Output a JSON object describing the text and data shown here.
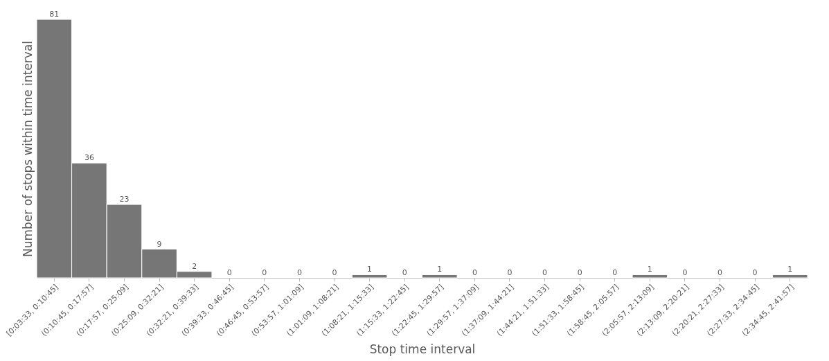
{
  "chart_data": {
    "type": "bar",
    "xlabel": "Stop time interval",
    "ylabel": "Number of stops within time interval",
    "categories": [
      "[0:03:33, 0:10:45]",
      "(0:10:45, 0:17:57]",
      "(0:17:57, 0:25:09]",
      "(0:25:09, 0:32:21]",
      "(0:32:21, 0:39:33]",
      "(0:39:33, 0:46:45]",
      "(0:46:45, 0:53:57]",
      "(0:53:57, 1:01:09]",
      "(1:01:09, 1:08:21]",
      "(1:08:21, 1:15:33]",
      "(1:15:33, 1:22:45]",
      "(1:22:45, 1:29:57]",
      "(1:29:57, 1:37:09]",
      "(1:37:09, 1:44:21]",
      "(1:44:21, 1:51:33]",
      "(1:51:33, 1:58:45]",
      "(1:58:45, 2:05:57]",
      "(2:05:57, 2:13:09]",
      "(2:13:09, 2:20:21]",
      "(2:20:21, 2:27:33]",
      "(2:27:33, 2:34:45]",
      "(2:34:45, 2:41:57]"
    ],
    "values": [
      81,
      36,
      23,
      9,
      2,
      0,
      0,
      0,
      0,
      1,
      0,
      1,
      0,
      0,
      0,
      0,
      0,
      1,
      0,
      0,
      0,
      1
    ],
    "color": "#767676",
    "data_labels": true,
    "tick_labels": "x",
    "grid": false
  }
}
